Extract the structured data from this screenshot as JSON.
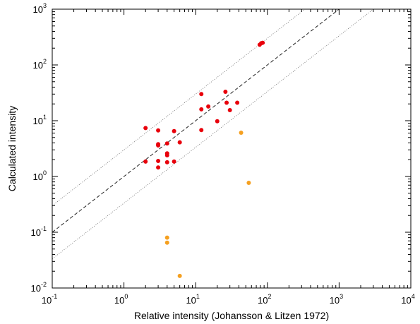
{
  "chart_data": {
    "type": "scatter",
    "xscale": "log",
    "yscale": "log",
    "xlim": [
      0.1,
      10000
    ],
    "ylim": [
      0.01,
      1000
    ],
    "xlabel": "Relative intensity (Johansson & Litzen 1972)",
    "ylabel": "Calculated intensity",
    "x_ticks": [
      {
        "value": 0.1,
        "base": "10",
        "exp": "-1"
      },
      {
        "value": 1,
        "base": "10",
        "exp": "0"
      },
      {
        "value": 10,
        "base": "10",
        "exp": "1"
      },
      {
        "value": 100,
        "base": "10",
        "exp": "2"
      },
      {
        "value": 1000,
        "base": "10",
        "exp": "3"
      },
      {
        "value": 10000,
        "base": "10",
        "exp": "4"
      }
    ],
    "y_ticks": [
      {
        "value": 0.01,
        "base": "10",
        "exp": "-2"
      },
      {
        "value": 0.1,
        "base": "10",
        "exp": "-1"
      },
      {
        "value": 1,
        "base": "10",
        "exp": "0"
      },
      {
        "value": 10,
        "base": "10",
        "exp": "1"
      },
      {
        "value": 100,
        "base": "10",
        "exp": "2"
      },
      {
        "value": 1000,
        "base": "10",
        "exp": "3"
      }
    ],
    "reference_lines": [
      {
        "style": "dashed",
        "factor": 1
      },
      {
        "style": "dotted",
        "factor": 3
      },
      {
        "style": "dotted",
        "factor": 0.333
      }
    ],
    "series": [
      {
        "color": "#e8000b",
        "points": [
          [
            2,
            7.4
          ],
          [
            2,
            1.85
          ],
          [
            3,
            6.7
          ],
          [
            3,
            3.8
          ],
          [
            3,
            3.6
          ],
          [
            3,
            1.9
          ],
          [
            3,
            1.45
          ],
          [
            4,
            3.9
          ],
          [
            4,
            2.6
          ],
          [
            4,
            2.4
          ],
          [
            4,
            1.8
          ],
          [
            5,
            6.5
          ],
          [
            5,
            1.85
          ],
          [
            6,
            4.1
          ],
          [
            12,
            30
          ],
          [
            12,
            16
          ],
          [
            12,
            6.8
          ],
          [
            15,
            18
          ],
          [
            20,
            9.8
          ],
          [
            26,
            33
          ],
          [
            27,
            21
          ],
          [
            30,
            15.5
          ],
          [
            38,
            21
          ],
          [
            78,
            230
          ],
          [
            82,
            245
          ],
          [
            86,
            250
          ]
        ]
      },
      {
        "color": "#f5a020",
        "points": [
          [
            43,
            6.1
          ],
          [
            55,
            0.77
          ],
          [
            4,
            0.08
          ],
          [
            4,
            0.065
          ],
          [
            6,
            0.0165
          ]
        ]
      }
    ]
  }
}
